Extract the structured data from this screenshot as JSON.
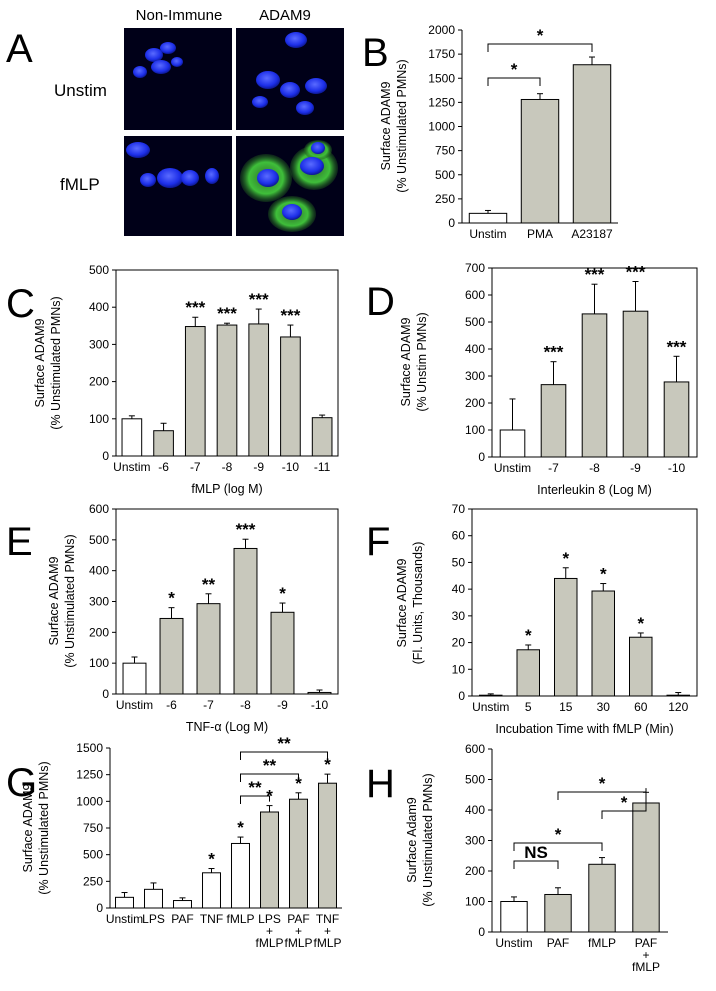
{
  "panel_a": {
    "label": "A",
    "col_labels": [
      "Non-Immune",
      "ADAM9"
    ],
    "row_labels": [
      "Unstim",
      "fMLP"
    ]
  },
  "colors": {
    "gray_bar": "#c8c8bc",
    "white_bar": "#ffffff",
    "nucleus": "#1c2ee8",
    "adam9": "#3fbf3a",
    "bg": "#000016"
  },
  "chart_data": [
    {
      "id": "B",
      "type": "bar",
      "panel_label": "B",
      "categories": [
        "Unstim",
        "PMA",
        "A23187"
      ],
      "values": [
        100,
        1280,
        1640
      ],
      "errors": [
        30,
        60,
        80
      ],
      "fill": [
        "white",
        "gray",
        "gray"
      ],
      "ylabel": [
        "Surface ADAM9",
        "(% Unstimulated PMNs)"
      ],
      "xlabel": "",
      "ylim": [
        0,
        2000
      ],
      "yticks": [
        0,
        250,
        500,
        750,
        1000,
        1250,
        1500,
        1750,
        2000
      ],
      "stars": [
        "",
        "",
        ""
      ],
      "brackets": [
        {
          "from": 0,
          "to": 1,
          "label": "*"
        },
        {
          "from": 0,
          "to": 2,
          "label": "*"
        }
      ],
      "box": false
    },
    {
      "id": "C",
      "type": "bar",
      "panel_label": "C",
      "categories": [
        "Unstim",
        "-6",
        "-7",
        "-8",
        "-9",
        "-10",
        "-11"
      ],
      "values": [
        100,
        68,
        348,
        352,
        355,
        320,
        103
      ],
      "errors": [
        8,
        20,
        25,
        5,
        40,
        32,
        7
      ],
      "fill": [
        "white",
        "gray",
        "gray",
        "gray",
        "gray",
        "gray",
        "gray"
      ],
      "ylabel": [
        "Surface ADAM9",
        "(% Unstimulated PMNs)"
      ],
      "xlabel": "fMLP (log M)",
      "ylim": [
        0,
        500
      ],
      "yticks": [
        0,
        100,
        200,
        300,
        400,
        500
      ],
      "stars": [
        "",
        "",
        "***",
        "***",
        "***",
        "***",
        ""
      ],
      "brackets": [],
      "box": true
    },
    {
      "id": "D",
      "type": "bar",
      "panel_label": "D",
      "categories": [
        "Unstim",
        "-7",
        "-8",
        "-9",
        "-10"
      ],
      "values": [
        100,
        268,
        530,
        540,
        278
      ],
      "errors": [
        115,
        85,
        110,
        110,
        95
      ],
      "fill": [
        "white",
        "gray",
        "gray",
        "gray",
        "gray"
      ],
      "ylabel": [
        "Surface ADAM9",
        "(% Unstim PMNs)"
      ],
      "xlabel": "Interleukin 8 (Log M)",
      "ylim": [
        0,
        700
      ],
      "yticks": [
        0,
        100,
        200,
        300,
        400,
        500,
        600,
        700
      ],
      "stars": [
        "",
        "***",
        "***",
        "***",
        "***"
      ],
      "brackets": [],
      "box": true
    },
    {
      "id": "E",
      "type": "bar",
      "panel_label": "E",
      "categories": [
        "Unstim",
        "-6",
        "-7",
        "-8",
        "-9",
        "-10"
      ],
      "values": [
        100,
        245,
        293,
        472,
        265,
        5
      ],
      "errors": [
        20,
        35,
        32,
        30,
        30,
        8
      ],
      "fill": [
        "white",
        "gray",
        "gray",
        "gray",
        "gray",
        "gray"
      ],
      "ylabel": [
        "Surface ADAM9",
        "(% Unstimulated PMNs)"
      ],
      "xlabel": "TNF-α (Log M)",
      "ylim": [
        0,
        600
      ],
      "yticks": [
        0,
        100,
        200,
        300,
        400,
        500,
        600
      ],
      "stars": [
        "",
        "*",
        "**",
        "***",
        "*",
        ""
      ],
      "brackets": [],
      "box": true
    },
    {
      "id": "F",
      "type": "bar",
      "panel_label": "F",
      "categories": [
        "Unstim",
        "5",
        "15",
        "30",
        "60",
        "120"
      ],
      "values": [
        0.3,
        17.3,
        44,
        39.3,
        22,
        0.3
      ],
      "errors": [
        0.5,
        1.8,
        4,
        2.8,
        1.6,
        1
      ],
      "fill": [
        "white",
        "gray",
        "gray",
        "gray",
        "gray",
        "gray"
      ],
      "ylabel": [
        "Surface ADAM9",
        "(Fl. Units, Thousands)"
      ],
      "xlabel": "Incubation Time with fMLP (Min)",
      "ylim": [
        0,
        70
      ],
      "yticks": [
        0,
        10,
        20,
        30,
        40,
        50,
        60,
        70
      ],
      "stars": [
        "",
        "*",
        "*",
        "*",
        "*",
        ""
      ],
      "brackets": [],
      "box": true
    },
    {
      "id": "G",
      "type": "bar",
      "panel_label": "G",
      "categories": [
        [
          "Unstim"
        ],
        [
          "LPS"
        ],
        [
          "PAF"
        ],
        [
          "TNF"
        ],
        [
          "fMLP"
        ],
        [
          "LPS",
          "+",
          "fMLP"
        ],
        [
          "PAF",
          "+",
          "fMLP"
        ],
        [
          "TNF",
          "+",
          "fMLP"
        ]
      ],
      "values": [
        100,
        175,
        70,
        330,
        605,
        900,
        1020,
        1170
      ],
      "errors": [
        45,
        60,
        25,
        40,
        60,
        60,
        60,
        85
      ],
      "fill": [
        "white",
        "white",
        "white",
        "white",
        "white",
        "gray",
        "gray",
        "gray"
      ],
      "ylabel": [
        "Surface ADAM9",
        "(% Unstimulated PMNs)"
      ],
      "xlabel": "",
      "ylim": [
        0,
        1500
      ],
      "yticks": [
        0,
        250,
        500,
        750,
        1000,
        1250,
        1500
      ],
      "stars": [
        "",
        "",
        "",
        "*",
        "*",
        "*",
        "*",
        "*"
      ],
      "brackets": [
        {
          "from": 4,
          "to": 5,
          "label": "**"
        },
        {
          "from": 4,
          "to": 6,
          "label": "**"
        },
        {
          "from": 4,
          "to": 7,
          "label": "**"
        }
      ],
      "box": false
    },
    {
      "id": "H",
      "type": "bar",
      "panel_label": "H",
      "categories": [
        [
          "Unstim"
        ],
        [
          "PAF"
        ],
        [
          "fMLP"
        ],
        [
          "PAF",
          "+",
          "fMLP"
        ]
      ],
      "values": [
        100,
        123,
        222,
        423
      ],
      "errors": [
        15,
        22,
        22,
        35
      ],
      "fill": [
        "white",
        "gray",
        "gray",
        "gray"
      ],
      "ylabel": [
        "Surface Adam9",
        "(% Unstimulated PMNs)"
      ],
      "xlabel": "",
      "ylim": [
        0,
        600
      ],
      "yticks": [
        0,
        100,
        200,
        300,
        400,
        500,
        600
      ],
      "stars": [
        "",
        "",
        "",
        ""
      ],
      "brackets": [
        {
          "from": 0,
          "to": 1,
          "label": "NS"
        },
        {
          "from": 0,
          "to": 2,
          "label": "*"
        },
        {
          "from": 2,
          "to": 3,
          "label": "*"
        },
        {
          "from": 1,
          "to": 3,
          "label": "*"
        }
      ],
      "box": false
    }
  ]
}
